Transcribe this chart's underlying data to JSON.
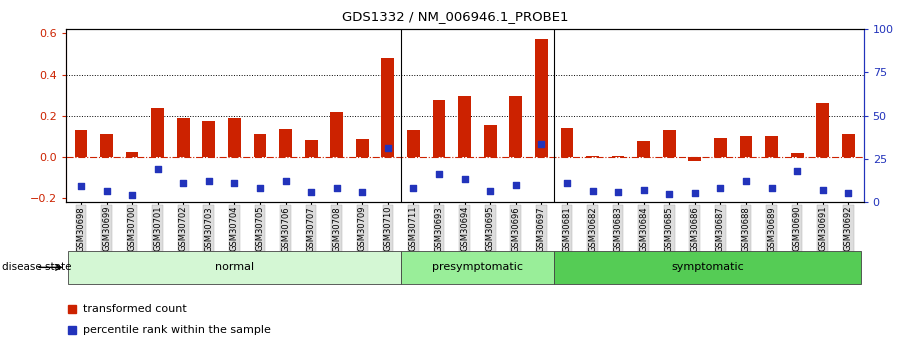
{
  "title": "GDS1332 / NM_006946.1_PROBE1",
  "samples": [
    "GSM30698",
    "GSM30699",
    "GSM30700",
    "GSM30701",
    "GSM30702",
    "GSM30703",
    "GSM30704",
    "GSM30705",
    "GSM30706",
    "GSM30707",
    "GSM30708",
    "GSM30709",
    "GSM30710",
    "GSM30711",
    "GSM30693",
    "GSM30694",
    "GSM30695",
    "GSM30696",
    "GSM30697",
    "GSM30681",
    "GSM30682",
    "GSM30683",
    "GSM30684",
    "GSM30685",
    "GSM30686",
    "GSM30687",
    "GSM30688",
    "GSM30689",
    "GSM30690",
    "GSM30691",
    "GSM30692"
  ],
  "red_values": [
    0.13,
    0.11,
    0.025,
    0.235,
    0.19,
    0.175,
    0.19,
    0.11,
    0.135,
    0.08,
    0.215,
    0.085,
    0.48,
    0.13,
    0.275,
    0.295,
    0.155,
    0.295,
    0.575,
    0.14,
    0.005,
    0.005,
    0.075,
    0.13,
    -0.02,
    0.09,
    0.1,
    0.1,
    0.02,
    0.26,
    0.11
  ],
  "blue_values": [
    -0.145,
    -0.165,
    -0.185,
    -0.06,
    -0.13,
    -0.12,
    -0.13,
    -0.155,
    -0.12,
    -0.17,
    -0.155,
    -0.17,
    0.04,
    -0.155,
    -0.085,
    -0.11,
    -0.165,
    -0.14,
    0.06,
    -0.13,
    -0.165,
    -0.17,
    -0.16,
    -0.18,
    -0.175,
    -0.155,
    -0.12,
    -0.155,
    -0.07,
    -0.16,
    -0.175
  ],
  "groups": [
    {
      "label": "normal",
      "start": 0,
      "end": 13,
      "color": "#d4f7d4"
    },
    {
      "label": "presymptomatic",
      "start": 13,
      "end": 19,
      "color": "#99ee99"
    },
    {
      "label": "symptomatic",
      "start": 19,
      "end": 31,
      "color": "#55cc55"
    }
  ],
  "ylim_left": [
    -0.22,
    0.62
  ],
  "ylim_right": [
    0,
    100
  ],
  "yticks_left": [
    -0.2,
    0.0,
    0.2,
    0.4,
    0.6
  ],
  "yticks_right": [
    0,
    25,
    50,
    75,
    100
  ],
  "red_color": "#cc2200",
  "blue_color": "#2233bb",
  "bar_width": 0.5,
  "legend_red": "transformed count",
  "legend_blue": "percentile rank within the sample",
  "disease_state_label": "disease state"
}
